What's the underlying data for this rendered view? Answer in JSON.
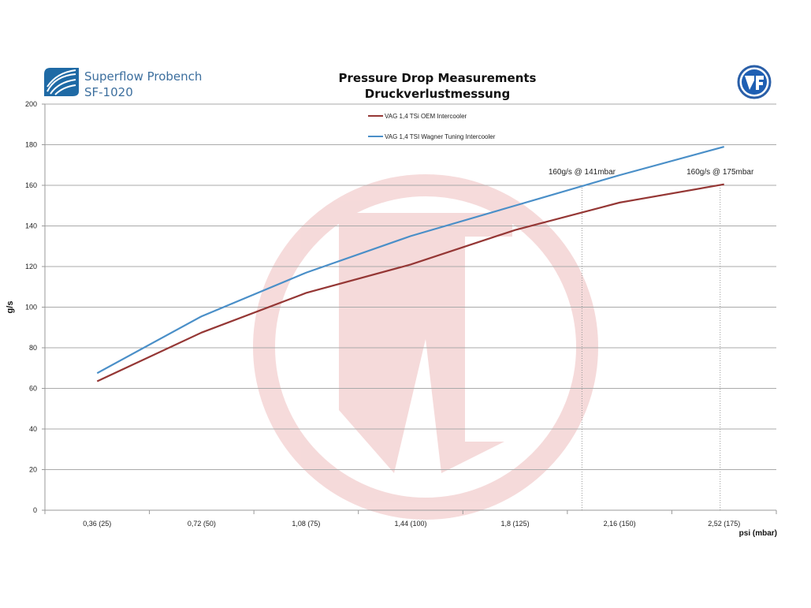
{
  "header": {
    "brand_line1": "Superflow Probench",
    "brand_line2": "SF-1020",
    "logo_right": "WF"
  },
  "chart_data": {
    "type": "line",
    "title": "Pressure Drop Measurements",
    "subtitle": "Druckverlustmessung",
    "xlabel": "psi (mbar)",
    "ylabel": "g/s",
    "ylim": [
      0,
      200
    ],
    "yticks": [
      "0",
      "20",
      "40",
      "60",
      "80",
      "100",
      "120",
      "140",
      "160",
      "180",
      "200"
    ],
    "categories": [
      "0,36 (25)",
      "0,72 (50)",
      "1,08 (75)",
      "1,44 (100)",
      "1,8 (125)",
      "2,16 (150)",
      "2,52 (175)"
    ],
    "grid": true,
    "legend_position": "top-center",
    "series": [
      {
        "name": "VAG 1,4 TSi OEM Intercooler",
        "color": "#953735",
        "values": [
          63.5,
          87.5,
          107,
          121,
          138,
          151.5,
          160.5
        ]
      },
      {
        "name": "VAG 1,4 TSI Wagner Tuning Intercooler",
        "color": "#4a8fc8",
        "values": [
          67.5,
          95.5,
          117,
          135,
          150,
          165,
          179
        ]
      }
    ],
    "annotations": [
      {
        "text": "160g/s @ 141mbar",
        "x_index": 4.64,
        "y": 160
      },
      {
        "text": "160g/s @ 175mbar",
        "x_index": 6,
        "y": 160
      }
    ]
  }
}
